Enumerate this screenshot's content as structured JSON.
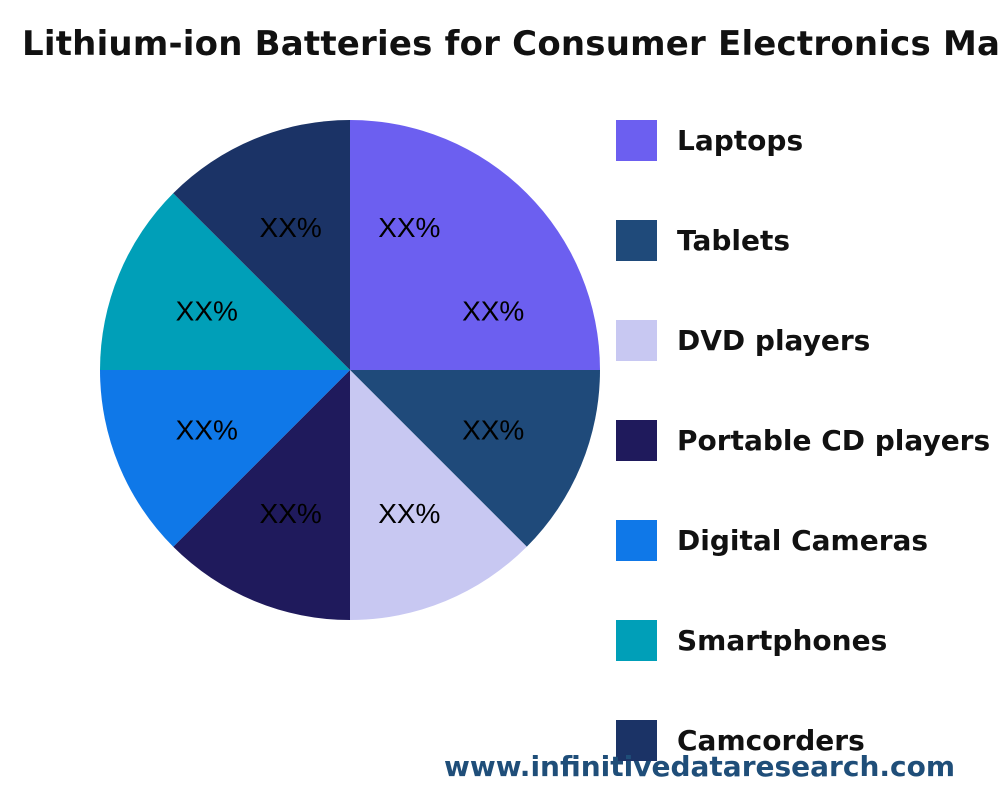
{
  "chart_data": {
    "type": "pie",
    "title": "Lithium-ion Batteries for Consumer Electronics Ma",
    "categories": [
      "Laptops",
      "Tablets",
      "DVD players",
      "Portable CD players",
      "Digital Cameras",
      "Smartphones",
      "Camcorders"
    ],
    "values": [
      25,
      12.5,
      12.5,
      12.5,
      12.5,
      12.5,
      12.5
    ],
    "slice_labels": [
      "XX%",
      "XX%",
      "XX%",
      "XX%",
      "XX%",
      "XX%",
      "XX%"
    ],
    "colors": [
      "#6c5ff0",
      "#1f4a7a",
      "#c8c8f2",
      "#1f1a5c",
      "#0f78e8",
      "#009fb8",
      "#1b3366"
    ],
    "legend_position": "right"
  },
  "watermark": "www.infinitivedataresearch.com"
}
